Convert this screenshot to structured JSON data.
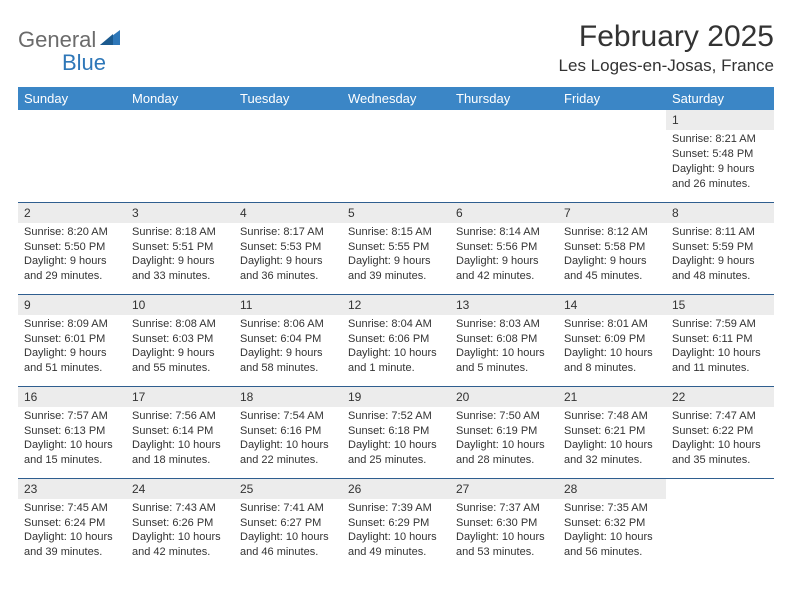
{
  "brand": {
    "part1": "General",
    "part2": "Blue"
  },
  "header": {
    "title": "February 2025",
    "location": "Les Loges-en-Josas, France"
  },
  "colors": {
    "header_bg": "#3b86c6",
    "header_text": "#ffffff",
    "row_divider": "#2f5e8f",
    "daynum_bg": "#ececec",
    "text": "#333333",
    "logo_gray": "#6b6b6b",
    "logo_blue": "#2e77b8"
  },
  "weekdays": [
    "Sunday",
    "Monday",
    "Tuesday",
    "Wednesday",
    "Thursday",
    "Friday",
    "Saturday"
  ],
  "weeks": [
    [
      null,
      null,
      null,
      null,
      null,
      null,
      {
        "n": "1",
        "sr": "Sunrise: 8:21 AM",
        "ss": "Sunset: 5:48 PM",
        "dl": "Daylight: 9 hours and 26 minutes."
      }
    ],
    [
      {
        "n": "2",
        "sr": "Sunrise: 8:20 AM",
        "ss": "Sunset: 5:50 PM",
        "dl": "Daylight: 9 hours and 29 minutes."
      },
      {
        "n": "3",
        "sr": "Sunrise: 8:18 AM",
        "ss": "Sunset: 5:51 PM",
        "dl": "Daylight: 9 hours and 33 minutes."
      },
      {
        "n": "4",
        "sr": "Sunrise: 8:17 AM",
        "ss": "Sunset: 5:53 PM",
        "dl": "Daylight: 9 hours and 36 minutes."
      },
      {
        "n": "5",
        "sr": "Sunrise: 8:15 AM",
        "ss": "Sunset: 5:55 PM",
        "dl": "Daylight: 9 hours and 39 minutes."
      },
      {
        "n": "6",
        "sr": "Sunrise: 8:14 AM",
        "ss": "Sunset: 5:56 PM",
        "dl": "Daylight: 9 hours and 42 minutes."
      },
      {
        "n": "7",
        "sr": "Sunrise: 8:12 AM",
        "ss": "Sunset: 5:58 PM",
        "dl": "Daylight: 9 hours and 45 minutes."
      },
      {
        "n": "8",
        "sr": "Sunrise: 8:11 AM",
        "ss": "Sunset: 5:59 PM",
        "dl": "Daylight: 9 hours and 48 minutes."
      }
    ],
    [
      {
        "n": "9",
        "sr": "Sunrise: 8:09 AM",
        "ss": "Sunset: 6:01 PM",
        "dl": "Daylight: 9 hours and 51 minutes."
      },
      {
        "n": "10",
        "sr": "Sunrise: 8:08 AM",
        "ss": "Sunset: 6:03 PM",
        "dl": "Daylight: 9 hours and 55 minutes."
      },
      {
        "n": "11",
        "sr": "Sunrise: 8:06 AM",
        "ss": "Sunset: 6:04 PM",
        "dl": "Daylight: 9 hours and 58 minutes."
      },
      {
        "n": "12",
        "sr": "Sunrise: 8:04 AM",
        "ss": "Sunset: 6:06 PM",
        "dl": "Daylight: 10 hours and 1 minute."
      },
      {
        "n": "13",
        "sr": "Sunrise: 8:03 AM",
        "ss": "Sunset: 6:08 PM",
        "dl": "Daylight: 10 hours and 5 minutes."
      },
      {
        "n": "14",
        "sr": "Sunrise: 8:01 AM",
        "ss": "Sunset: 6:09 PM",
        "dl": "Daylight: 10 hours and 8 minutes."
      },
      {
        "n": "15",
        "sr": "Sunrise: 7:59 AM",
        "ss": "Sunset: 6:11 PM",
        "dl": "Daylight: 10 hours and 11 minutes."
      }
    ],
    [
      {
        "n": "16",
        "sr": "Sunrise: 7:57 AM",
        "ss": "Sunset: 6:13 PM",
        "dl": "Daylight: 10 hours and 15 minutes."
      },
      {
        "n": "17",
        "sr": "Sunrise: 7:56 AM",
        "ss": "Sunset: 6:14 PM",
        "dl": "Daylight: 10 hours and 18 minutes."
      },
      {
        "n": "18",
        "sr": "Sunrise: 7:54 AM",
        "ss": "Sunset: 6:16 PM",
        "dl": "Daylight: 10 hours and 22 minutes."
      },
      {
        "n": "19",
        "sr": "Sunrise: 7:52 AM",
        "ss": "Sunset: 6:18 PM",
        "dl": "Daylight: 10 hours and 25 minutes."
      },
      {
        "n": "20",
        "sr": "Sunrise: 7:50 AM",
        "ss": "Sunset: 6:19 PM",
        "dl": "Daylight: 10 hours and 28 minutes."
      },
      {
        "n": "21",
        "sr": "Sunrise: 7:48 AM",
        "ss": "Sunset: 6:21 PM",
        "dl": "Daylight: 10 hours and 32 minutes."
      },
      {
        "n": "22",
        "sr": "Sunrise: 7:47 AM",
        "ss": "Sunset: 6:22 PM",
        "dl": "Daylight: 10 hours and 35 minutes."
      }
    ],
    [
      {
        "n": "23",
        "sr": "Sunrise: 7:45 AM",
        "ss": "Sunset: 6:24 PM",
        "dl": "Daylight: 10 hours and 39 minutes."
      },
      {
        "n": "24",
        "sr": "Sunrise: 7:43 AM",
        "ss": "Sunset: 6:26 PM",
        "dl": "Daylight: 10 hours and 42 minutes."
      },
      {
        "n": "25",
        "sr": "Sunrise: 7:41 AM",
        "ss": "Sunset: 6:27 PM",
        "dl": "Daylight: 10 hours and 46 minutes."
      },
      {
        "n": "26",
        "sr": "Sunrise: 7:39 AM",
        "ss": "Sunset: 6:29 PM",
        "dl": "Daylight: 10 hours and 49 minutes."
      },
      {
        "n": "27",
        "sr": "Sunrise: 7:37 AM",
        "ss": "Sunset: 6:30 PM",
        "dl": "Daylight: 10 hours and 53 minutes."
      },
      {
        "n": "28",
        "sr": "Sunrise: 7:35 AM",
        "ss": "Sunset: 6:32 PM",
        "dl": "Daylight: 10 hours and 56 minutes."
      },
      null
    ]
  ]
}
